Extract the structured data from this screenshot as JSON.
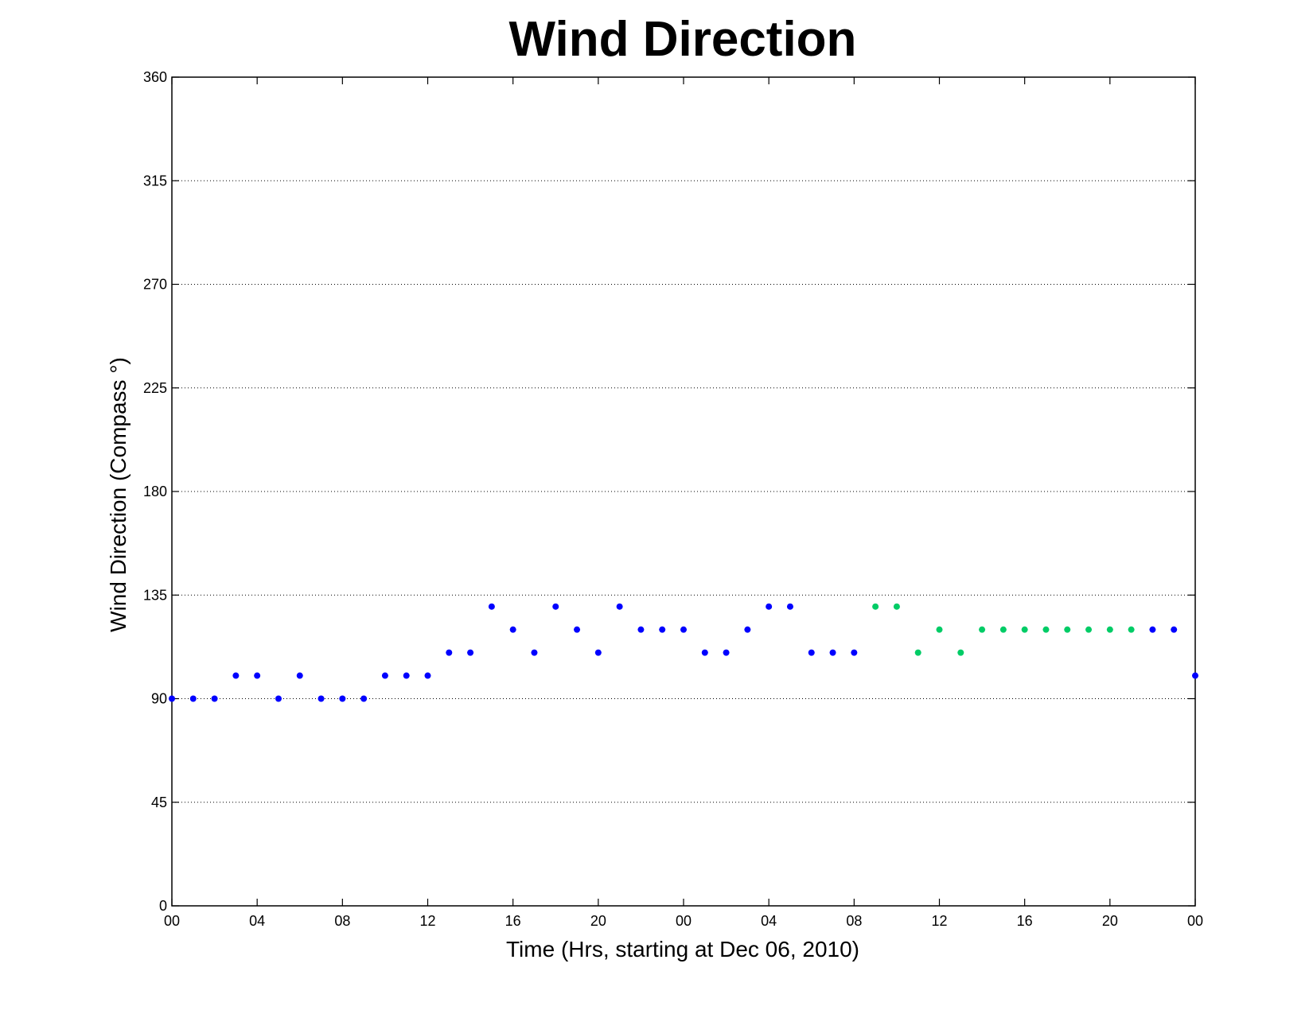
{
  "chart_data": {
    "type": "scatter",
    "title": "Wind Direction",
    "xlabel": "Time (Hrs, starting at Dec 06, 2010)",
    "ylabel": "Wind Direction (Compass  °)",
    "xlim": [
      0,
      48
    ],
    "ylim": [
      0,
      360
    ],
    "x_tick_values": [
      0,
      4,
      8,
      12,
      16,
      20,
      24,
      28,
      32,
      36,
      40,
      44,
      48
    ],
    "x_tick_labels": [
      "00",
      "04",
      "08",
      "12",
      "16",
      "20",
      "00",
      "04",
      "08",
      "12",
      "16",
      "20",
      "00"
    ],
    "y_ticks": [
      0,
      45,
      90,
      135,
      180,
      225,
      270,
      315,
      360
    ],
    "grid": "horizontal dotted",
    "legend": "none",
    "series": [
      {
        "color": "#0000ff",
        "points": [
          [
            0,
            90
          ],
          [
            1,
            90
          ],
          [
            2,
            90
          ],
          [
            3,
            100
          ],
          [
            4,
            100
          ],
          [
            5,
            90
          ],
          [
            6,
            100
          ],
          [
            7,
            90
          ],
          [
            8,
            90
          ],
          [
            9,
            90
          ],
          [
            10,
            100
          ],
          [
            11,
            100
          ],
          [
            12,
            100
          ],
          [
            13,
            110
          ],
          [
            14,
            110
          ],
          [
            15,
            130
          ],
          [
            16,
            120
          ],
          [
            17,
            110
          ],
          [
            18,
            130
          ],
          [
            19,
            120
          ],
          [
            20,
            110
          ],
          [
            21,
            130
          ],
          [
            22,
            120
          ],
          [
            23,
            120
          ],
          [
            24,
            120
          ],
          [
            25,
            110
          ],
          [
            26,
            110
          ],
          [
            27,
            120
          ],
          [
            28,
            130
          ],
          [
            29,
            130
          ],
          [
            30,
            110
          ],
          [
            31,
            110
          ],
          [
            32,
            110
          ],
          [
            46,
            120
          ],
          [
            47,
            120
          ],
          [
            48,
            100
          ]
        ]
      },
      {
        "color": "#00cc66",
        "points": [
          [
            33,
            130
          ],
          [
            34,
            130
          ],
          [
            35,
            110
          ],
          [
            36,
            120
          ],
          [
            37,
            110
          ],
          [
            38,
            120
          ],
          [
            39,
            120
          ],
          [
            40,
            120
          ],
          [
            41,
            120
          ],
          [
            42,
            120
          ],
          [
            43,
            120
          ],
          [
            44,
            120
          ],
          [
            45,
            120
          ]
        ]
      }
    ]
  }
}
